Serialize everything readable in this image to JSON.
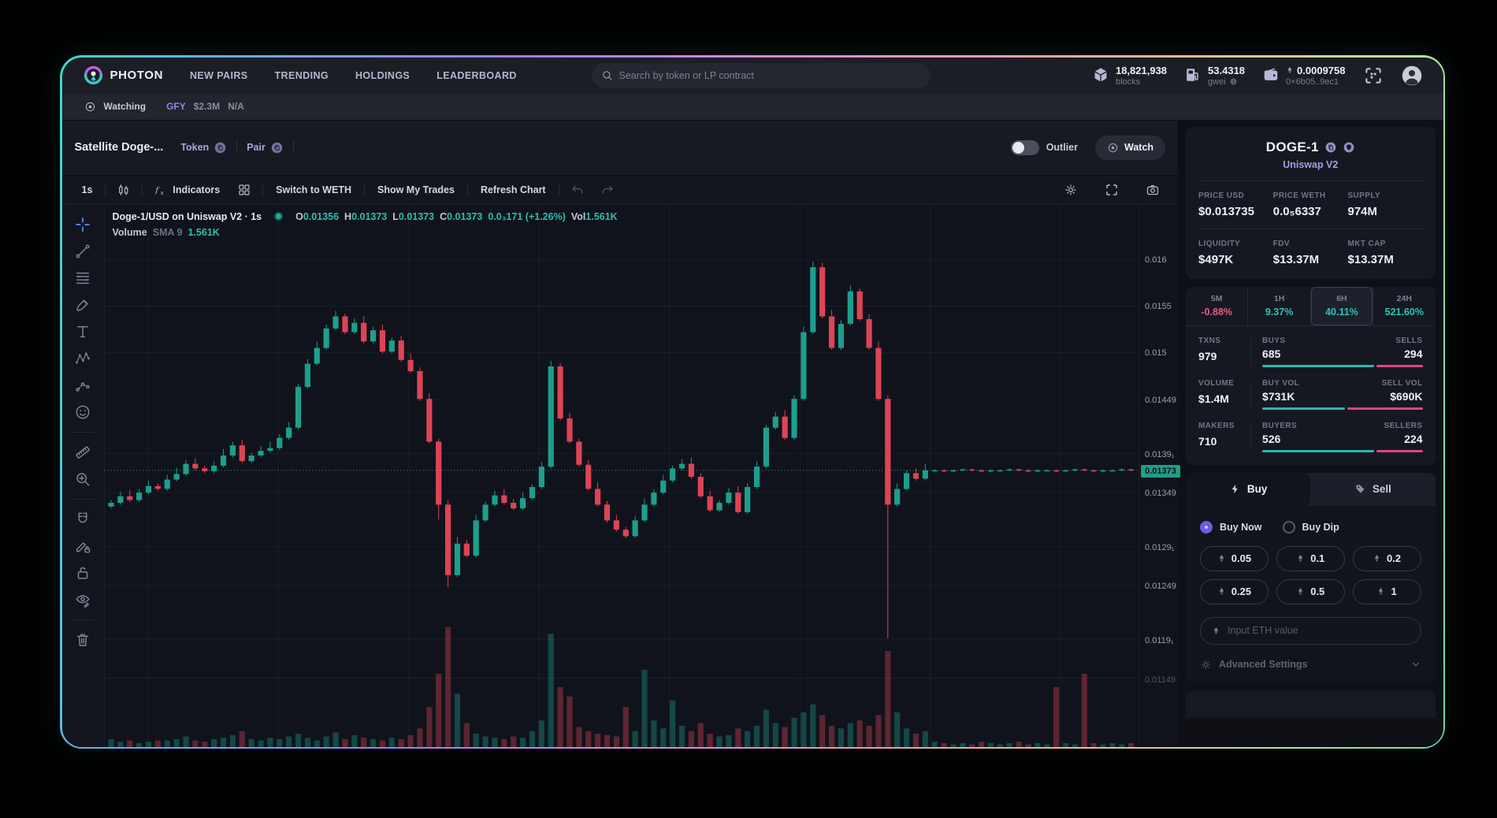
{
  "nav": {
    "brand": "PHOTON",
    "links": [
      "NEW PAIRS",
      "TRENDING",
      "HOLDINGS",
      "LEADERBOARD"
    ],
    "search_placeholder": "Search by token or LP contract",
    "stats": [
      {
        "icon": "cube-icon",
        "value": "18,821,938",
        "label": "blocks"
      },
      {
        "icon": "gas-pump-icon",
        "value": "53.4318",
        "label": "gwei",
        "info": true
      },
      {
        "icon": "wallet-icon",
        "value": "0.0009758",
        "label": "0×6b05..9ec1",
        "eth": true
      }
    ]
  },
  "watchbar": {
    "watching_label": "Watching",
    "token": "GFY",
    "marketcap": "$2.3M",
    "extra": "N/A"
  },
  "pair_header": {
    "title": "Satellite Doge-...",
    "token_link": "Token",
    "pair_link": "Pair",
    "outlier_label": "Outlier",
    "watch_label": "Watch"
  },
  "chart_toolbar": {
    "timeframe": "1s",
    "indicators_label": "Indicators",
    "switch_label": "Switch to WETH",
    "trades_label": "Show My Trades",
    "refresh_label": "Refresh Chart"
  },
  "left_toolbar_groups": [
    [
      "crosshair-icon",
      "trendline-icon",
      "fib-lines-icon",
      "brush-icon",
      "text-tool-icon",
      "xabcd-pattern-icon",
      "forecast-icon",
      "emoji-icon"
    ],
    [
      "ruler-icon",
      "zoom-in-icon"
    ],
    [
      "magnet-icon",
      "draw-lock-icon",
      "lock-icon",
      "hide-drawings-icon"
    ],
    [
      "trash-icon"
    ]
  ],
  "chart_data": {
    "type": "candlestick",
    "title": "Doge-1/USD on Uniswap V2 · 1s",
    "ohlc": {
      "o": "0.01356",
      "h": "0.01373",
      "l": "0.01373",
      "c": "0.01373",
      "change": "0.0₃171 (+1.26%)",
      "vol": "1.561K"
    },
    "volume_row": {
      "label": "Volume",
      "sma": "SMA 9",
      "value": "1.561K"
    },
    "y_ticks": [
      {
        "v": 1600,
        "label": "0.016"
      },
      {
        "v": 1550,
        "label": "0.0155"
      },
      {
        "v": 1500,
        "label": "0.015"
      },
      {
        "v": 1449,
        "label": "0.01449"
      },
      {
        "v": 1391,
        "label": "0.0139₁"
      },
      {
        "v": 1349,
        "label": "0.01349"
      },
      {
        "v": 1291,
        "label": "0.0129₁"
      },
      {
        "v": 1249,
        "label": "0.01249"
      },
      {
        "v": 1191,
        "label": "0.0119₁"
      },
      {
        "v": 1149,
        "label": "0.01149"
      }
    ],
    "current_price": {
      "v": 1373,
      "label": "0.01373"
    },
    "price_unit": 1e-05,
    "ylim": [
      0.0109,
      0.0163
    ],
    "grid": true,
    "closes": [
      1338,
      1345,
      1341,
      1349,
      1356,
      1353,
      1363,
      1369,
      1380,
      1375,
      1372,
      1378,
      1389,
      1400,
      1383,
      1389,
      1394,
      1397,
      1408,
      1419,
      1463,
      1488,
      1505,
      1526,
      1539,
      1522,
      1532,
      1512,
      1524,
      1501,
      1513,
      1492,
      1480,
      1450,
      1404,
      1336,
      1260,
      1294,
      1281,
      1319,
      1336,
      1346,
      1338,
      1332,
      1343,
      1355,
      1377,
      1485,
      1429,
      1404,
      1379,
      1353,
      1336,
      1319,
      1309,
      1302,
      1319,
      1336,
      1349,
      1362,
      1375,
      1380,
      1366,
      1345,
      1330,
      1338,
      1349,
      1328,
      1355,
      1377,
      1419,
      1431,
      1408,
      1450,
      1522,
      1592,
      1539,
      1505,
      1531,
      1566,
      1536,
      1505,
      1450,
      1336,
      1353,
      1370,
      1364,
      1373,
      1373,
      1372,
      1373,
      1374,
      1373,
      1372,
      1373,
      1373,
      1374,
      1373,
      1372,
      1373,
      1373,
      1372,
      1373,
      1374,
      1373,
      1372,
      1373,
      1373,
      1374,
      1373
    ],
    "volumes": [
      6,
      4,
      5,
      3,
      4,
      5,
      5,
      6,
      8,
      5,
      4,
      6,
      7,
      9,
      12,
      6,
      5,
      7,
      6,
      8,
      10,
      7,
      5,
      8,
      11,
      6,
      9,
      7,
      6,
      5,
      7,
      6,
      9,
      14,
      30,
      55,
      90,
      40,
      18,
      10,
      8,
      7,
      6,
      8,
      7,
      12,
      20,
      85,
      45,
      38,
      15,
      12,
      10,
      9,
      8,
      30,
      12,
      58,
      20,
      14,
      35,
      16,
      12,
      18,
      10,
      8,
      9,
      14,
      12,
      16,
      28,
      18,
      15,
      22,
      26,
      32,
      24,
      16,
      14,
      18,
      20,
      16,
      24,
      72,
      26,
      14,
      10,
      12,
      4,
      3,
      2,
      3,
      2,
      4,
      3,
      2,
      3,
      4,
      2,
      3,
      2,
      45,
      3,
      2,
      55,
      3,
      2,
      3,
      2,
      3
    ],
    "wick_high": {
      "24": 1545,
      "47": 1491,
      "75": 1598,
      "79": 1573
    },
    "wick_low": {
      "35": 1320,
      "36": 1247,
      "83": 1192
    },
    "colors": {
      "up": "#1d9e8d",
      "down": "#dd4456",
      "vol_up": "rgba(29,158,141,0.38)",
      "vol_down": "rgba(221,68,86,0.38)"
    }
  },
  "sidebar": {
    "token": "DOGE-1",
    "dex": "Uniswap V2",
    "stats_row1": [
      {
        "label": "PRICE USD",
        "value": "$0.013735"
      },
      {
        "label": "PRICE WETH",
        "value": "0.0₅6337"
      },
      {
        "label": "SUPPLY",
        "value": "974M"
      }
    ],
    "stats_row2": [
      {
        "label": "LIQUIDITY",
        "value": "$497K"
      },
      {
        "label": "FDV",
        "value": "$13.37M"
      },
      {
        "label": "MKT CAP",
        "value": "$13.37M"
      }
    ],
    "timeframes": [
      {
        "label": "5M",
        "value": "-0.88%",
        "dir": "down",
        "selected": false
      },
      {
        "label": "1H",
        "value": "9.37%",
        "dir": "up",
        "selected": false
      },
      {
        "label": "6H",
        "value": "40.11%",
        "dir": "up",
        "selected": true
      },
      {
        "label": "24H",
        "value": "521.60%",
        "dir": "up",
        "selected": false
      }
    ],
    "txn_stats": [
      {
        "left_label": "TXNS",
        "left_value": "979",
        "a_label": "BUYS",
        "a_value": "685",
        "b_label": "SELLS",
        "b_value": "294",
        "ratio": 0.7
      },
      {
        "left_label": "VOLUME",
        "left_value": "$1.4M",
        "a_label": "BUY VOL",
        "a_value": "$731K",
        "b_label": "SELL VOL",
        "b_value": "$690K",
        "ratio": 0.515
      },
      {
        "left_label": "MAKERS",
        "left_value": "710",
        "a_label": "BUYERS",
        "a_value": "526",
        "b_label": "SELLERS",
        "b_value": "224",
        "ratio": 0.7
      }
    ],
    "trade": {
      "buy_tab": "Buy",
      "sell_tab": "Sell",
      "radio_now": "Buy Now",
      "radio_dip": "Buy Dip",
      "presets": [
        "0.05",
        "0.1",
        "0.2",
        "0.25",
        "0.5",
        "1"
      ],
      "input_placeholder": "Input ETH value",
      "advanced_label": "Advanced Settings"
    }
  },
  "icons": {
    "search-icon": "magnifier",
    "cube-icon": "3d-cube",
    "gas-pump-icon": "fuel-pump",
    "wallet-icon": "wallet",
    "eth-icon": "ethereum-diamond",
    "info-icon": "info-circle",
    "qr-scan-icon": "scan-frame",
    "avatar-icon": "person-circle",
    "eye-icon": "eye",
    "copy-icon": "copy-badge",
    "shield-icon": "shield-badge",
    "candles-icon": "candlesticks",
    "fx-icon": "function-fx",
    "grid4-icon": "layout-grid",
    "undo-icon": "undo-arrow",
    "redo-icon": "redo-arrow",
    "settings-gear-icon": "gear",
    "fullscreen-icon": "expand-brackets",
    "camera-icon": "camera",
    "crosshair-icon": "crosshair",
    "trendline-icon": "trend-line",
    "fib-lines-icon": "parallel-lines",
    "brush-icon": "brush",
    "text-tool-icon": "letter-T",
    "xabcd-pattern-icon": "zigzag-points",
    "forecast-icon": "dotted-path",
    "emoji-icon": "smiley",
    "ruler-icon": "ruler",
    "zoom-in-icon": "magnifier-plus",
    "magnet-icon": "magnet",
    "draw-lock-icon": "pencil-lock",
    "lock-icon": "padlock",
    "hide-drawings-icon": "eye-pencil",
    "trash-icon": "trash-can",
    "lightning-icon": "lightning-bolt",
    "tag-icon": "price-tag",
    "chevron-down-icon": "chevron-down"
  }
}
